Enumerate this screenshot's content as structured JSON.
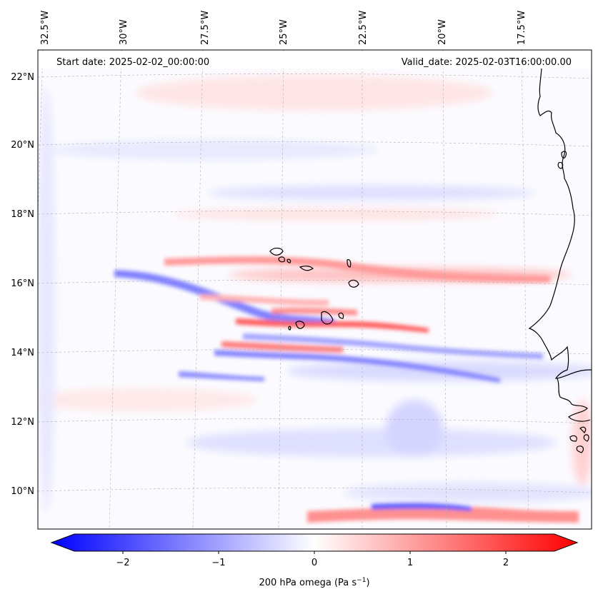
{
  "header": {
    "start_date": "Start date: 2025-02-02_00:00:00",
    "valid_date": "Valid_date: 2025-02-03T16:00:00.00"
  },
  "longitude_labels": [
    "32.5°W",
    "30°W",
    "27.5°W",
    "25°W",
    "22.5°W",
    "20°W",
    "17.5°W"
  ],
  "latitude_labels": [
    "22°N",
    "20°N",
    "18°N",
    "16°N",
    "14°N",
    "12°N",
    "10°N"
  ],
  "colorbar": {
    "title": "200 hPa omega (Pa s",
    "title_unit_sup": "−1",
    "title_close": ")",
    "ticks": [
      "−2",
      "−1",
      "0",
      "1",
      "2"
    ],
    "min": -2.7,
    "max": 2.7,
    "low_color": "#0000ff",
    "mid_color": "#ffffff",
    "high_color": "#ff0000"
  },
  "colors": {
    "coastline": "#000000",
    "gridline": "#b0b0b0",
    "header_bg": "#ffffff"
  }
}
